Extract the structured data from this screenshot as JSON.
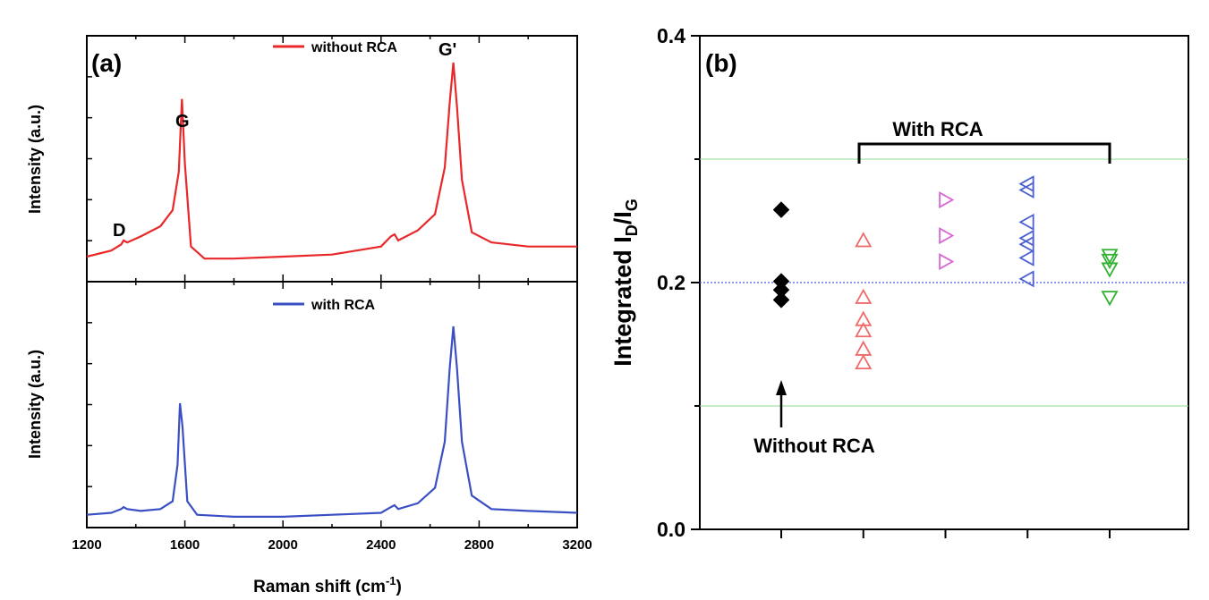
{
  "chart_data": [
    {
      "panel_label": "(a)",
      "type": "line",
      "xlabel": "Raman shift (cm",
      "xlabel_sup": "-1",
      "xlabel_close": ")",
      "ylabel": "Intensity (a.u.)",
      "xlim": [
        1200,
        3200
      ],
      "xticks": [
        "1200",
        "1600",
        "2000",
        "2400",
        "2800",
        "3200"
      ],
      "subplots": [
        {
          "legend": "without RCA",
          "color": "#e8282a",
          "ylabel": "Intensity (a.u.)",
          "peaks": [
            {
              "label": "D",
              "x": 1350
            },
            {
              "label": "G",
              "x": 1588
            },
            {
              "label": "G'",
              "x": 2695
            }
          ],
          "series": {
            "x": [
              1200,
              1300,
              1340,
              1350,
              1365,
              1420,
              1500,
              1550,
              1575,
              1588,
              1600,
              1625,
              1680,
              1800,
              2000,
              2200,
              2400,
              2440,
              2455,
              2470,
              2550,
              2620,
              2660,
              2680,
              2695,
              2710,
              2730,
              2770,
              2850,
              3000,
              3200
            ],
            "y": [
              0.04,
              0.07,
              0.1,
              0.12,
              0.11,
              0.14,
              0.19,
              0.27,
              0.46,
              0.82,
              0.5,
              0.09,
              0.03,
              0.03,
              0.04,
              0.05,
              0.09,
              0.14,
              0.15,
              0.12,
              0.17,
              0.25,
              0.48,
              0.8,
              1.0,
              0.78,
              0.42,
              0.16,
              0.11,
              0.09,
              0.09
            ]
          }
        },
        {
          "legend": "with RCA",
          "color": "#3a4fc4",
          "ylabel": "Intensity (a.u.)",
          "series": {
            "x": [
              1200,
              1300,
              1340,
              1350,
              1365,
              1420,
              1500,
              1550,
              1570,
              1580,
              1590,
              1610,
              1650,
              1800,
              2000,
              2200,
              2400,
              2440,
              2455,
              2470,
              2550,
              2620,
              2660,
              2680,
              2695,
              2710,
              2730,
              2770,
              2850,
              3000,
              3200
            ],
            "y": [
              0.02,
              0.03,
              0.05,
              0.06,
              0.05,
              0.04,
              0.05,
              0.09,
              0.28,
              0.6,
              0.48,
              0.09,
              0.02,
              0.01,
              0.01,
              0.02,
              0.03,
              0.06,
              0.07,
              0.05,
              0.08,
              0.16,
              0.4,
              0.78,
              1.0,
              0.78,
              0.4,
              0.12,
              0.05,
              0.04,
              0.03
            ]
          }
        }
      ]
    },
    {
      "panel_label": "(b)",
      "type": "scatter",
      "ylabel": "Integrated I",
      "ylabel_sub1": "D",
      "ylabel_mid": "/I",
      "ylabel_sub2": "G",
      "ylim": [
        0.0,
        0.4
      ],
      "yticks": [
        "0.0",
        "0.2",
        "0.4"
      ],
      "reference_lines": [
        {
          "y": 0.1,
          "color": "#8edc8e",
          "style": "solid"
        },
        {
          "y": 0.2,
          "color": "#4a5fe0",
          "style": "dotted"
        },
        {
          "y": 0.3,
          "color": "#8edc8e",
          "style": "solid"
        }
      ],
      "annotations": {
        "with_rca": "With RCA",
        "without_rca": "Without RCA"
      },
      "series": [
        {
          "group": 1,
          "marker": "diamond-filled",
          "color": "#000000",
          "values": [
            0.259,
            0.201,
            0.194,
            0.186
          ]
        },
        {
          "group": 2,
          "marker": "triangle-up",
          "color": "#f06a6a",
          "values": [
            0.234,
            0.188,
            0.17,
            0.161,
            0.146,
            0.135
          ]
        },
        {
          "group": 3,
          "marker": "triangle-right",
          "color": "#d966d6",
          "values": [
            0.267,
            0.238,
            0.217
          ]
        },
        {
          "group": 4,
          "marker": "triangle-left",
          "color": "#4a5fd0",
          "values": [
            0.28,
            0.275,
            0.249,
            0.236,
            0.231,
            0.22,
            0.203
          ]
        },
        {
          "group": 5,
          "marker": "triangle-down",
          "color": "#2fb02f",
          "values": [
            0.222,
            0.218,
            0.211,
            0.188
          ]
        }
      ]
    }
  ]
}
